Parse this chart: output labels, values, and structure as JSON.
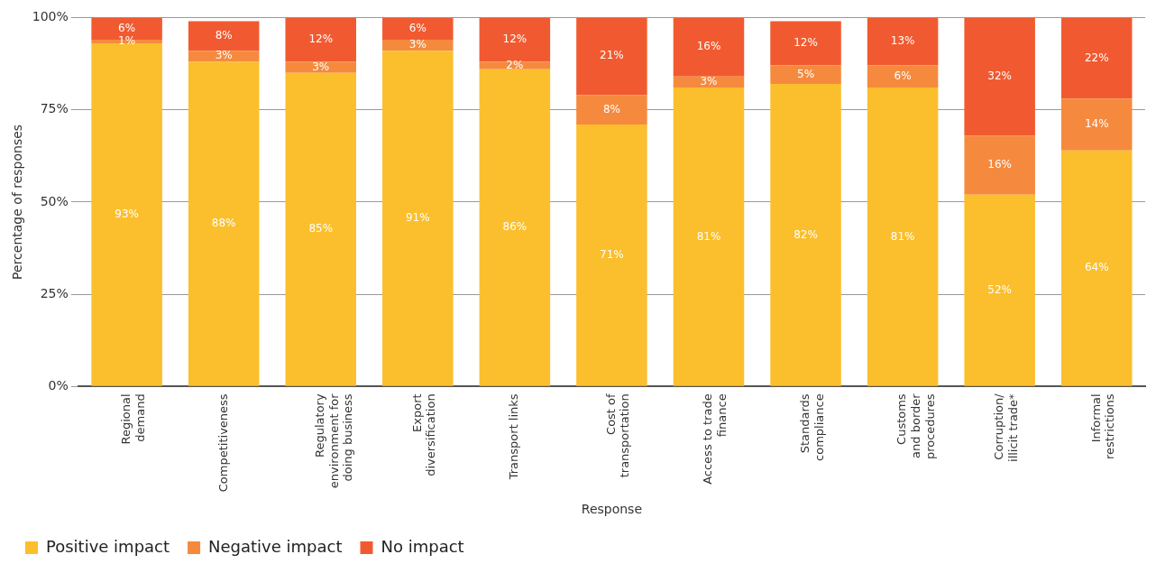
{
  "chart_data": {
    "type": "bar",
    "stacked": true,
    "xlabel": "Response",
    "ylabel": "Percentage of responses",
    "categories": [
      "Regional\ndemand",
      "Competitiveness",
      "Regulatory\nenvironment for\ndoing business",
      "Export\ndiversification",
      "Transport links",
      "Cost of\ntransportation",
      "Access to trade\nfinance",
      "Standards\ncompliance",
      "Customs\nand border\nprocedures",
      "Corruption/\nillicit trade*",
      "Informal\nrestrictions"
    ],
    "series": [
      {
        "name": "Positive impact",
        "color": "#fbbf2d",
        "values": [
          93,
          88,
          85,
          91,
          86,
          71,
          81,
          82,
          81,
          52,
          64
        ],
        "value_labels": [
          "93%",
          "88%",
          "85%",
          "91%",
          "86%",
          "71%",
          "81%",
          "82%",
          "81%",
          "52%",
          "64%"
        ]
      },
      {
        "name": "Negative impact",
        "color": "#f58a3f",
        "values": [
          1,
          3,
          3,
          3,
          2,
          8,
          3,
          5,
          6,
          16,
          14
        ],
        "value_labels": [
          "1%",
          "3%",
          "3%",
          "3%",
          "2%",
          "8%",
          "3%",
          "5%",
          "6%",
          "16%",
          "14%"
        ]
      },
      {
        "name": "No impact",
        "color": "#f15a30",
        "values": [
          6,
          8,
          12,
          6,
          12,
          21,
          16,
          12,
          13,
          32,
          22
        ],
        "value_labels": [
          "6%",
          "8%",
          "12%",
          "6%",
          "12%",
          "21%",
          "16%",
          "12%",
          "13%",
          "32%",
          "22%"
        ]
      }
    ],
    "ylim": [
      0,
      100
    ],
    "yticks": [
      {
        "value": 0,
        "label": "0%"
      },
      {
        "value": 25,
        "label": "25%"
      },
      {
        "value": 50,
        "label": "50%"
      },
      {
        "value": 75,
        "label": "75%"
      },
      {
        "value": 100,
        "label": "100%"
      }
    ],
    "grid": "y",
    "legend": "bottom left"
  }
}
